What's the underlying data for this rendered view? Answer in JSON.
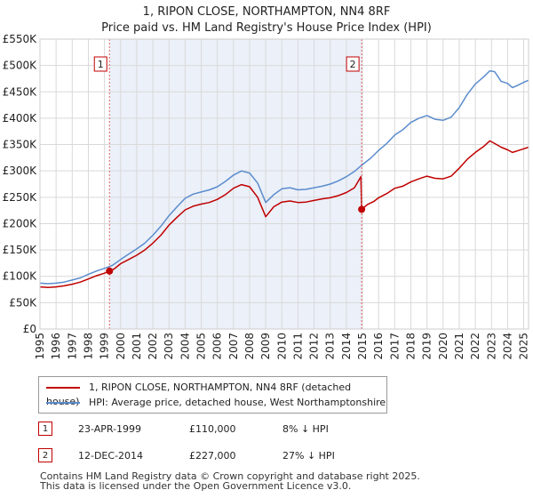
{
  "chart_data": {
    "type": "line",
    "title": "1, RIPON CLOSE, NORTHAMPTON, NN4 8RF",
    "subtitle": "Price paid vs. HM Land Registry's House Price Index (HPI)",
    "xlim": [
      1995,
      2025.3
    ],
    "ylim": [
      0,
      550000
    ],
    "y_ticks": [
      0,
      50000,
      100000,
      150000,
      200000,
      250000,
      300000,
      350000,
      400000,
      450000,
      500000,
      550000
    ],
    "y_tick_labels": [
      "£0",
      "£50K",
      "£100K",
      "£150K",
      "£200K",
      "£250K",
      "£300K",
      "£350K",
      "£400K",
      "£450K",
      "£500K",
      "£550K"
    ],
    "x_ticks": [
      1995,
      1996,
      1997,
      1998,
      1999,
      2000,
      2001,
      2002,
      2003,
      2004,
      2005,
      2006,
      2007,
      2008,
      2009,
      2010,
      2011,
      2012,
      2013,
      2014,
      2015,
      2016,
      2017,
      2018,
      2019,
      2020,
      2021,
      2022,
      2023,
      2024,
      2025
    ],
    "x_tick_labels": [
      "1995",
      "1996",
      "1997",
      "1998",
      "1999",
      "2000",
      "2001",
      "2002",
      "2003",
      "2004",
      "2005",
      "2006",
      "2007",
      "2008",
      "2009",
      "2010",
      "2011",
      "2012",
      "2013",
      "2014",
      "2015",
      "2016",
      "2017",
      "2018",
      "2019",
      "2020",
      "2021",
      "2022",
      "2023",
      "2024",
      "2025"
    ],
    "grid": true,
    "shaded_period": [
      1999.31,
      2014.95
    ],
    "series": [
      {
        "name": "1, RIPON CLOSE, NORTHAMPTON, NN4 8RF (detached house)",
        "color": "#c00000",
        "x": [
          1995.0,
          1995.5,
          1996.0,
          1996.5,
          1997.0,
          1997.5,
          1998.0,
          1998.5,
          1999.0,
          1999.31,
          1999.6,
          2000.0,
          2000.5,
          2001.0,
          2001.5,
          2002.0,
          2002.5,
          2003.0,
          2003.5,
          2004.0,
          2004.5,
          2005.0,
          2005.5,
          2006.0,
          2006.5,
          2007.0,
          2007.5,
          2008.0,
          2008.5,
          2009.0,
          2009.5,
          2010.0,
          2010.5,
          2011.0,
          2011.5,
          2012.0,
          2012.5,
          2013.0,
          2013.5,
          2014.0,
          2014.5,
          2014.9,
          2014.95,
          2015.3,
          2015.7,
          2016.0,
          2016.5,
          2017.0,
          2017.5,
          2018.0,
          2018.5,
          2019.0,
          2019.5,
          2020.0,
          2020.5,
          2021.0,
          2021.5,
          2022.0,
          2022.5,
          2022.9,
          2023.2,
          2023.6,
          2024.0,
          2024.3,
          2024.6,
          2025.0,
          2025.3
        ],
        "values": [
          80000,
          79000,
          80000,
          82000,
          85000,
          89000,
          95000,
          101000,
          106000,
          110000,
          114000,
          124000,
          132000,
          140000,
          150000,
          163000,
          178000,
          197000,
          212000,
          226000,
          233000,
          237000,
          240000,
          246000,
          255000,
          267000,
          274000,
          270000,
          250000,
          213000,
          232000,
          241000,
          243000,
          240000,
          241000,
          244000,
          247000,
          249000,
          253000,
          259000,
          268000,
          289000,
          227000,
          236000,
          242000,
          249000,
          257000,
          267000,
          271000,
          279000,
          285000,
          290000,
          286000,
          285000,
          290000,
          305000,
          322000,
          335000,
          346000,
          357000,
          352000,
          345000,
          340000,
          335000,
          338000,
          342000,
          345000
        ]
      },
      {
        "name": "HPI: Average price, detached house, West Northamptonshire",
        "color": "#5b8ccd",
        "x": [
          1995.0,
          1995.5,
          1996.0,
          1996.5,
          1997.0,
          1997.5,
          1998.0,
          1998.5,
          1999.0,
          1999.5,
          2000.0,
          2000.5,
          2001.0,
          2001.5,
          2002.0,
          2002.5,
          2003.0,
          2003.5,
          2004.0,
          2004.5,
          2005.0,
          2005.5,
          2006.0,
          2006.5,
          2007.0,
          2007.5,
          2008.0,
          2008.5,
          2009.0,
          2009.5,
          2010.0,
          2010.5,
          2011.0,
          2011.5,
          2012.0,
          2012.5,
          2013.0,
          2013.5,
          2014.0,
          2014.5,
          2015.0,
          2015.5,
          2016.0,
          2016.5,
          2017.0,
          2017.5,
          2018.0,
          2018.5,
          2019.0,
          2019.5,
          2020.0,
          2020.5,
          2021.0,
          2021.5,
          2022.0,
          2022.5,
          2022.9,
          2023.2,
          2023.6,
          2024.0,
          2024.3,
          2024.6,
          2025.0,
          2025.3
        ],
        "values": [
          87000,
          86000,
          87000,
          89000,
          93000,
          97000,
          104000,
          110000,
          115000,
          121000,
          132000,
          142000,
          152000,
          163000,
          178000,
          195000,
          215000,
          232000,
          248000,
          256000,
          260000,
          264000,
          270000,
          280000,
          292000,
          300000,
          296000,
          277000,
          240000,
          255000,
          266000,
          268000,
          264000,
          265000,
          268000,
          271000,
          275000,
          281000,
          289000,
          299000,
          312000,
          324000,
          339000,
          352000,
          368000,
          378000,
          392000,
          400000,
          405000,
          398000,
          396000,
          402000,
          420000,
          445000,
          465000,
          478000,
          490000,
          488000,
          470000,
          466000,
          458000,
          462000,
          468000,
          472000
        ]
      }
    ],
    "markers": [
      {
        "label": "1",
        "x": 1999.31,
        "value": 110000
      },
      {
        "label": "2",
        "x": 2014.95,
        "value": 227000
      }
    ]
  },
  "legend": {
    "items": [
      {
        "label": "1, RIPON CLOSE, NORTHAMPTON, NN4 8RF (detached house)",
        "color": "#c00000"
      },
      {
        "label": "HPI: Average price, detached house, West Northamptonshire",
        "color": "#5b8ccd"
      }
    ]
  },
  "transactions": [
    {
      "num": "1",
      "date": "23-APR-1999",
      "price": "£110,000",
      "hpi": "8% ↓ HPI"
    },
    {
      "num": "2",
      "date": "12-DEC-2014",
      "price": "£227,000",
      "hpi": "27% ↓ HPI"
    }
  ],
  "footer": {
    "line1": "Contains HM Land Registry data © Crown copyright and database right 2025.",
    "line2": "This data is licensed under the Open Government Licence v3.0."
  }
}
